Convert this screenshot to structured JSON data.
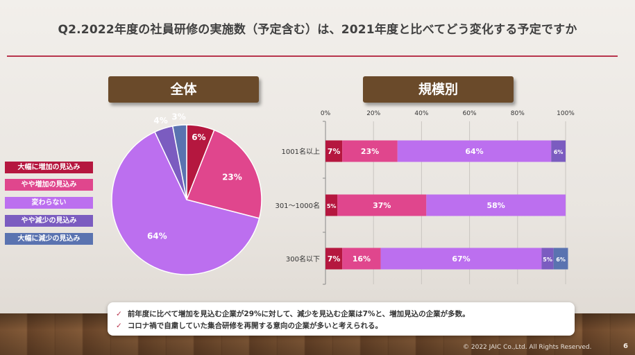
{
  "title": "Q2.2022年度の社員研修の実施数（予定含む）は、2021年度と比べてどう変化する予定ですか",
  "colors": {
    "accent_rule": "#b8344c",
    "pill": "#6a4a2a",
    "large_increase": "#b5173f",
    "slight_increase": "#e0468d",
    "no_change": "#bc6fef",
    "slight_decrease": "#7b5cc0",
    "large_decrease": "#5a73b0"
  },
  "pie_header": "全体",
  "bar_header": "規模別",
  "legend": [
    {
      "label": "大幅に増加の見込み",
      "color": "#b5173f"
    },
    {
      "label": "やや増加の見込み",
      "color": "#e0468d"
    },
    {
      "label": "変わらない",
      "color": "#bc6fef"
    },
    {
      "label": "やや減少の見込み",
      "color": "#7b5cc0"
    },
    {
      "label": "大幅に減少の見込み",
      "color": "#5a73b0"
    }
  ],
  "chart_data": [
    {
      "type": "pie",
      "title": "全体",
      "categories": [
        "大幅に増加の見込み",
        "やや増加の見込み",
        "変わらない",
        "やや減少の見込み",
        "大幅に減少の見込み"
      ],
      "values": [
        6,
        23,
        64,
        4,
        3
      ],
      "value_labels": [
        "6%",
        "23%",
        "64%",
        "4%",
        "3%"
      ],
      "colors": [
        "#b5173f",
        "#e0468d",
        "#bc6fef",
        "#7b5cc0",
        "#5a73b0"
      ]
    },
    {
      "type": "bar",
      "orientation": "horizontal",
      "stacked": true,
      "title": "規模別",
      "categories": [
        "1001名以上",
        "301〜1000名",
        "300名以下"
      ],
      "xlim": [
        0,
        100
      ],
      "xticks": [
        "0%",
        "20%",
        "40%",
        "60%",
        "80%",
        "100%"
      ],
      "series": [
        {
          "name": "大幅に増加の見込み",
          "values": [
            7,
            5,
            7
          ],
          "labels": [
            "7%",
            "5%",
            "7%"
          ],
          "color": "#b5173f"
        },
        {
          "name": "やや増加の見込み",
          "values": [
            23,
            37,
            16
          ],
          "labels": [
            "23%",
            "37%",
            "16%"
          ],
          "color": "#e0468d"
        },
        {
          "name": "変わらない",
          "values": [
            64,
            58,
            67
          ],
          "labels": [
            "64%",
            "58%",
            "67%"
          ],
          "color": "#bc6fef"
        },
        {
          "name": "やや減少の見込み",
          "values": [
            6,
            0,
            5
          ],
          "labels": [
            "6%",
            "",
            "5%"
          ],
          "color": "#7b5cc0"
        },
        {
          "name": "大幅に減少の見込み",
          "values": [
            0,
            0,
            6
          ],
          "labels": [
            "",
            "",
            "6%"
          ],
          "color": "#5a73b0"
        }
      ]
    }
  ],
  "notes": [
    "前年度に比べて増加を見込む企業が29%に対して、減少を見込む企業は7%と、増加見込の企業が多数。",
    "コロナ禍で自粛していた集合研修を再開する意向の企業が多いと考えられる。"
  ],
  "check_mark": "✓",
  "copyright": "© 2022 JAIC Co.,Ltd. All Rights Reserved.",
  "page_number": "6"
}
